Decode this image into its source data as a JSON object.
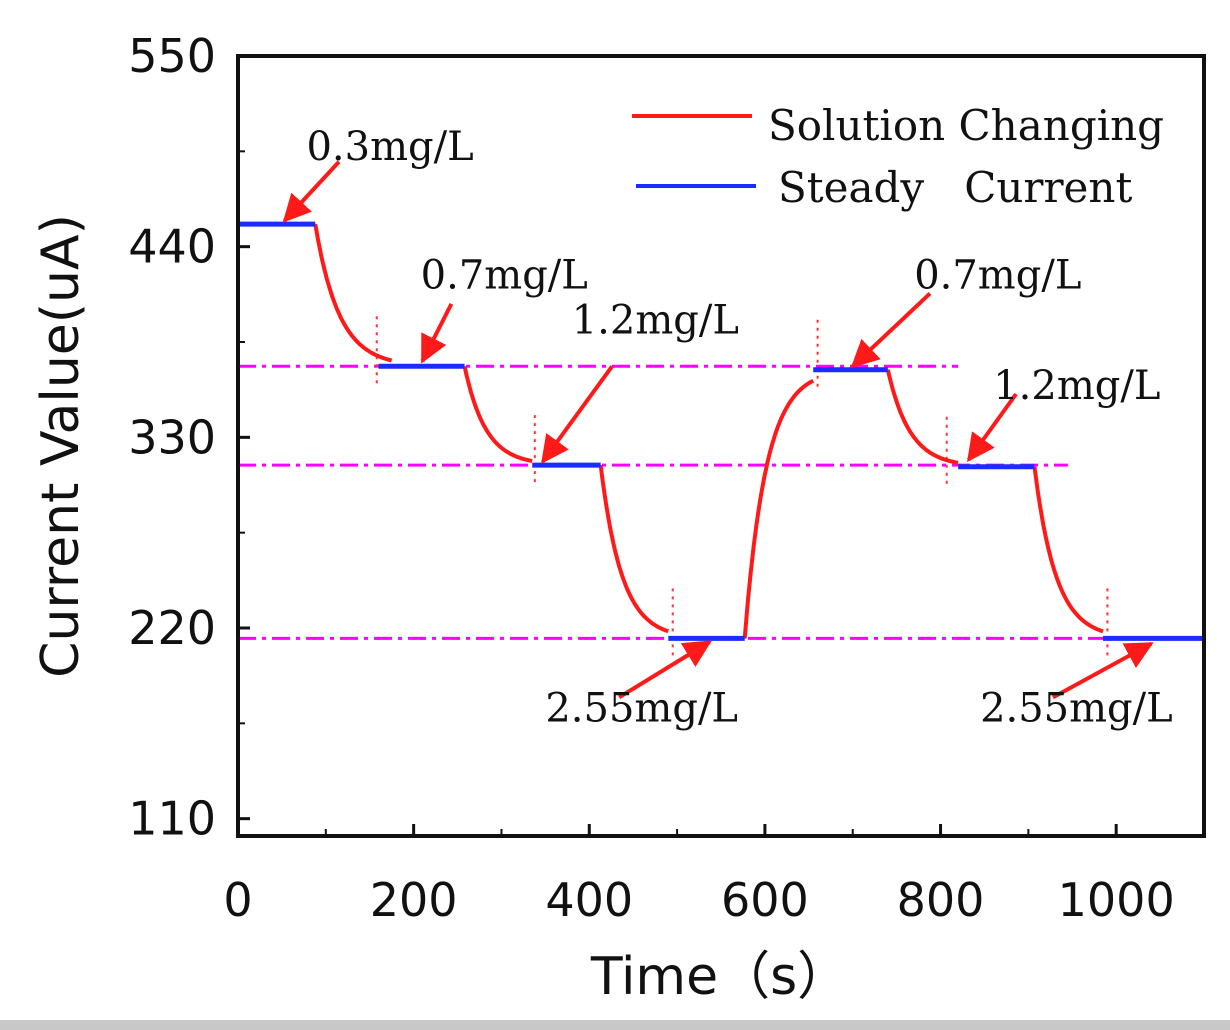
{
  "chart_data": {
    "type": "line",
    "title": "",
    "xlabel": "Time（s）",
    "ylabel": "Current Value(uA)",
    "xlim": [
      0,
      1100
    ],
    "ylim": [
      100,
      550
    ],
    "x_ticks": [
      {
        "value": 0,
        "label": "0"
      },
      {
        "value": 200,
        "label": "200"
      },
      {
        "value": 400,
        "label": "400"
      },
      {
        "value": 600,
        "label": "600"
      },
      {
        "value": 800,
        "label": "800"
      },
      {
        "value": 1000,
        "label": "1000"
      }
    ],
    "y_ticks": [
      {
        "value": 110,
        "label": "110"
      },
      {
        "value": 220,
        "label": "220"
      },
      {
        "value": 330,
        "label": "330"
      },
      {
        "value": 440,
        "label": "440"
      },
      {
        "value": 550,
        "label": "550"
      }
    ],
    "legend": {
      "position": "top-right",
      "entries": [
        {
          "name": "Solution Changing",
          "color": "#ff1a1a"
        },
        {
          "name": "Steady   Current",
          "color": "#1a2cff"
        }
      ]
    },
    "series": [
      {
        "name": "Solution Changing",
        "color": "#ff1a1a",
        "transitions": [
          {
            "t0": 88,
            "t1": 175,
            "from": 453,
            "to": 371
          },
          {
            "t0": 258,
            "t1": 335,
            "from": 371,
            "to": 314
          },
          {
            "t0": 413,
            "t1": 490,
            "from": 314,
            "to": 214
          },
          {
            "t0": 577,
            "t1": 655,
            "from": 214,
            "to": 369
          },
          {
            "t0": 740,
            "t1": 820,
            "from": 369,
            "to": 313
          },
          {
            "t0": 907,
            "t1": 985,
            "from": 313,
            "to": 214
          }
        ]
      },
      {
        "name": "Steady   Current",
        "color": "#1a2cff",
        "segments": [
          {
            "x": [
              0,
              88
            ],
            "y": 453
          },
          {
            "x": [
              160,
              258
            ],
            "y": 371
          },
          {
            "x": [
              335,
              413
            ],
            "y": 314
          },
          {
            "x": [
              490,
              577
            ],
            "y": 214
          },
          {
            "x": [
              655,
              740
            ],
            "y": 369
          },
          {
            "x": [
              820,
              907
            ],
            "y": 313
          },
          {
            "x": [
              985,
              1100
            ],
            "y": 214
          }
        ]
      }
    ],
    "reference_lines": {
      "color": "#ff00ff",
      "levels": [
        {
          "y": 371,
          "x": [
            0,
            820
          ]
        },
        {
          "y": 314,
          "x": [
            0,
            945
          ]
        },
        {
          "y": 214,
          "x": [
            0,
            1100
          ]
        }
      ]
    },
    "marker_lines": {
      "color": "#ff3333",
      "x": [
        158,
        338,
        495,
        660,
        807,
        990
      ]
    },
    "annotations": [
      {
        "text": "0.3mg/L",
        "label_x": 78,
        "label_y": 490,
        "arrow_from": [
          115,
          489
        ],
        "arrow_to": [
          53,
          455
        ]
      },
      {
        "text": "0.7mg/L",
        "label_x": 208,
        "label_y": 416,
        "arrow_from": [
          243,
          407
        ],
        "arrow_to": [
          210,
          374
        ]
      },
      {
        "text": "1.2mg/L",
        "label_x": 380,
        "label_y": 390,
        "arrow_from": [
          426,
          371
        ],
        "arrow_to": [
          347,
          316
        ]
      },
      {
        "text": "2.55mg/L",
        "label_x": 350,
        "label_y": 166,
        "arrow_from": [
          434,
          180
        ],
        "arrow_to": [
          537,
          212
        ]
      },
      {
        "text": "0.7mg/L",
        "label_x": 770,
        "label_y": 416,
        "arrow_from": [
          788,
          413
        ],
        "arrow_to": [
          700,
          371
        ]
      },
      {
        "text": "1.2mg/L",
        "label_x": 860,
        "label_y": 352,
        "arrow_from": [
          886,
          355
        ],
        "arrow_to": [
          832,
          317
        ]
      },
      {
        "text": "2.55mg/L",
        "label_x": 845,
        "label_y": 166,
        "arrow_from": [
          928,
          180
        ],
        "arrow_to": [
          1040,
          211
        ]
      }
    ]
  }
}
